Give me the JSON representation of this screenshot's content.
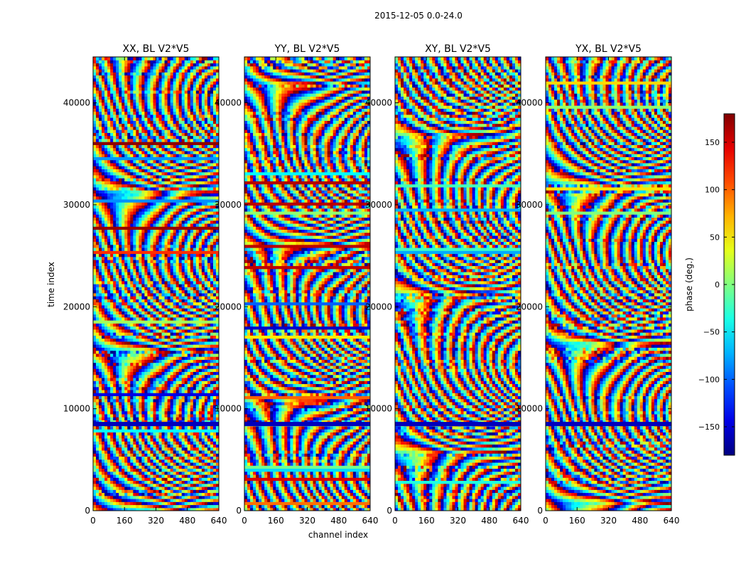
{
  "figure": {
    "suptitle": "2015-12-05 0.0-24.0",
    "ylabel": "time index",
    "xlabel": "channel index"
  },
  "colorbar": {
    "label": "phase (deg.)",
    "colormap": "jet",
    "range": [
      -180,
      180
    ],
    "ticks": [
      -150,
      -100,
      -50,
      0,
      50,
      100,
      150
    ],
    "tick_labels": [
      "−150",
      "−100",
      "−50",
      "0",
      "50",
      "100",
      "150"
    ]
  },
  "chart_data": [
    {
      "type": "heatmap",
      "title": "XX, BL V2*V5",
      "xlim": [
        0,
        640
      ],
      "ylim": [
        0,
        44500
      ],
      "xticks": [
        0,
        160,
        320,
        480,
        640
      ],
      "yticks": [
        0,
        10000,
        20000,
        30000,
        40000
      ],
      "value_range_deg": [
        -180,
        180
      ],
      "ylabel": "time index",
      "xlabel": ""
    },
    {
      "type": "heatmap",
      "title": "YY, BL V2*V5",
      "xlim": [
        0,
        640
      ],
      "ylim": [
        0,
        44500
      ],
      "xticks": [
        0,
        160,
        320,
        480,
        640
      ],
      "yticks": [
        0,
        10000,
        20000,
        30000,
        40000
      ],
      "value_range_deg": [
        -180,
        180
      ],
      "ylabel": "",
      "xlabel": "channel index"
    },
    {
      "type": "heatmap",
      "title": "XY, BL V2*V5",
      "xlim": [
        0,
        640
      ],
      "ylim": [
        0,
        44500
      ],
      "xticks": [
        0,
        160,
        320,
        480,
        640
      ],
      "yticks": [
        0,
        10000,
        20000,
        30000,
        40000
      ],
      "value_range_deg": [
        -180,
        180
      ],
      "ylabel": "",
      "xlabel": ""
    },
    {
      "type": "heatmap",
      "title": "YX, BL V2*V5",
      "xlim": [
        0,
        640
      ],
      "ylim": [
        0,
        44500
      ],
      "xticks": [
        0,
        160,
        320,
        480,
        640
      ],
      "yticks": [
        0,
        10000,
        20000,
        30000,
        40000
      ],
      "value_range_deg": [
        -180,
        180
      ],
      "ylabel": "",
      "xlabel": ""
    }
  ]
}
